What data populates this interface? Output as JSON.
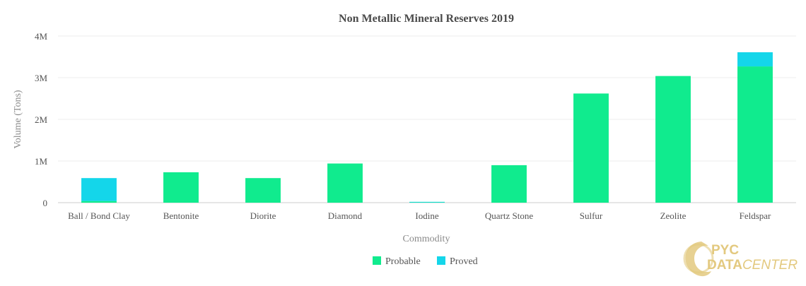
{
  "chart_data": {
    "type": "bar",
    "stacked": true,
    "title": "Non Metallic Mineral Reserves 2019",
    "xlabel": "Commodity",
    "ylabel": "Volume (Tons)",
    "categories": [
      "Ball / Bond Clay",
      "Bentonite",
      "Diorite",
      "Diamond",
      "Iodine",
      "Quartz Stone",
      "Sulfur",
      "Zeolite",
      "Feldspar"
    ],
    "series": [
      {
        "name": "Probable",
        "color": "#10eb8e",
        "values": [
          40000,
          730000,
          590000,
          940000,
          15000,
          900000,
          2620000,
          3040000,
          3270000
        ]
      },
      {
        "name": "Proved",
        "color": "#14d6ea",
        "values": [
          550000,
          0,
          0,
          0,
          5000,
          0,
          0,
          0,
          340000
        ]
      }
    ],
    "ylim": [
      0,
      4000000
    ],
    "yticks": [
      0,
      1000000,
      2000000,
      3000000,
      4000000
    ],
    "ytick_labels": [
      "0",
      "1M",
      "2M",
      "3M",
      "4M"
    ],
    "grid": true,
    "legend_position": "bottom-center"
  },
  "logo": {
    "line1": "PYC",
    "line2a": "DATA",
    "line2b": "CENTER",
    "color": "#e3c97f"
  }
}
